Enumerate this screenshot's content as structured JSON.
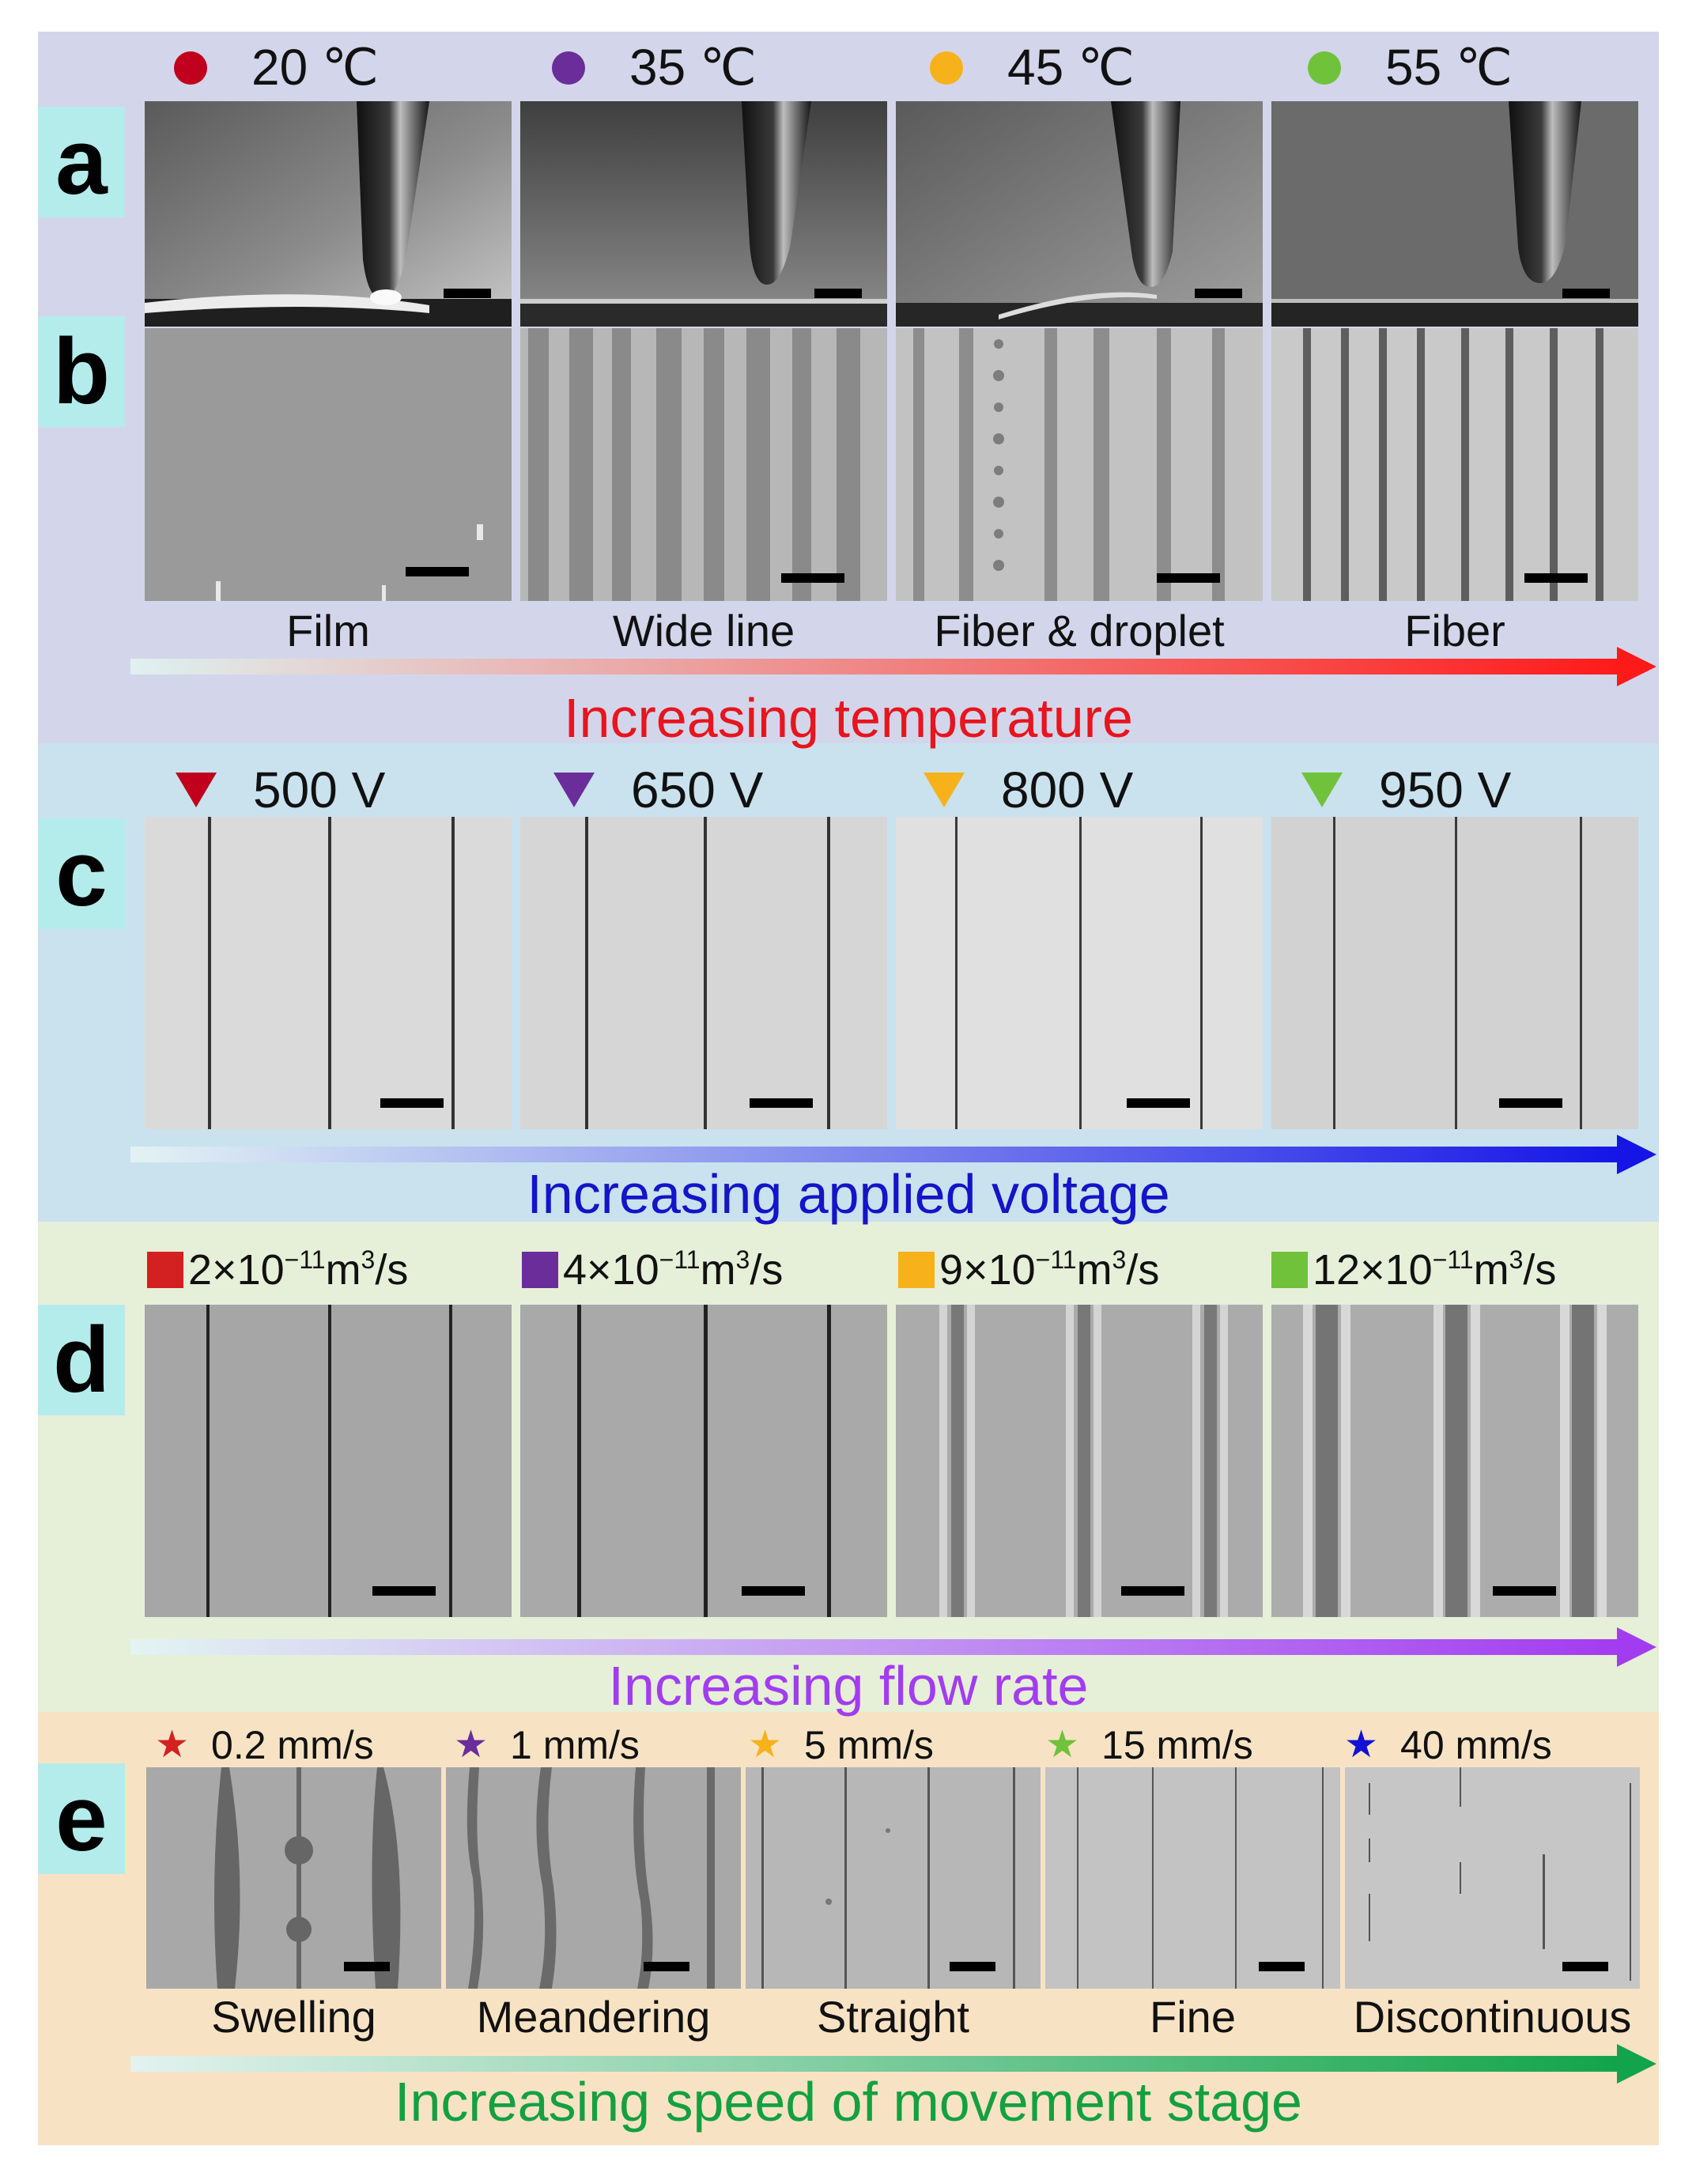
{
  "panel_letters": {
    "a": "a",
    "b": "b",
    "c": "c",
    "d": "d",
    "e": "e"
  },
  "temperature": {
    "columns": [
      {
        "label": "20 ℃",
        "color": "#c0001c",
        "morphology": "Film"
      },
      {
        "label": "35 ℃",
        "color": "#6a2d9a",
        "morphology": "Wide line"
      },
      {
        "label": "45 ℃",
        "color": "#f7b11a",
        "morphology": "Fiber & droplet"
      },
      {
        "label": "55 ℃",
        "color": "#6fc23a",
        "morphology": "Fiber"
      }
    ],
    "axis_label": "Increasing temperature",
    "arrow_color": "#ff1a1a"
  },
  "voltage": {
    "columns": [
      {
        "label": "500 V",
        "color": "#c0001c"
      },
      {
        "label": "650 V",
        "color": "#6a2d9a"
      },
      {
        "label": "800 V",
        "color": "#f7b11a"
      },
      {
        "label": "950 V",
        "color": "#6fc23a"
      }
    ],
    "axis_label": "Increasing applied voltage",
    "arrow_color": "#1515e6"
  },
  "flow_rate": {
    "columns": [
      {
        "coef": "2",
        "exp": "−11",
        "unit_m": " m",
        "unit_sup": "3",
        "unit_s": "/s",
        "color": "#d32020"
      },
      {
        "coef": "4",
        "exp": "−11",
        "unit_m": " m",
        "unit_sup": "3",
        "unit_s": "/s",
        "color": "#6a2d9a"
      },
      {
        "coef": "9",
        "exp": "−11",
        "unit_m": " m",
        "unit_sup": "3",
        "unit_s": "/s",
        "color": "#f7b11a"
      },
      {
        "coef": "12",
        "exp": "−11",
        "unit_m": " m",
        "unit_sup": "3",
        "unit_s": "/s",
        "color": "#6fc23a"
      }
    ],
    "times_sign": "×10",
    "axis_label": "Increasing flow rate",
    "arrow_color": "#a23cf0"
  },
  "speed": {
    "columns": [
      {
        "label": "0.2 mm/s",
        "color": "#d32020",
        "morphology": "Swelling"
      },
      {
        "label": "1 mm/s",
        "color": "#6a2d9a",
        "morphology": "Meandering"
      },
      {
        "label": "5 mm/s",
        "color": "#f7b11a",
        "morphology": "Straight"
      },
      {
        "label": "15 mm/s",
        "color": "#6fc23a",
        "morphology": "Fine"
      },
      {
        "label": "40 mm/s",
        "color": "#1212d6",
        "morphology": "Discontinuous"
      }
    ],
    "axis_label": "Increasing speed of movement stage",
    "arrow_color": "#12a44a"
  },
  "star_glyph": "★"
}
